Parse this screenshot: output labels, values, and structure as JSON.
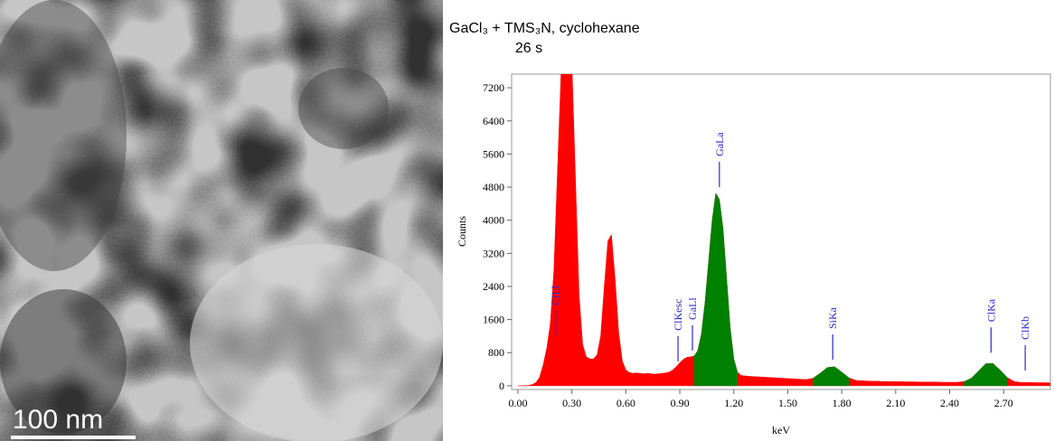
{
  "image": {
    "scale_bar": "100 nm"
  },
  "chart_data": {
    "type": "area",
    "title": "GaCl₃ + TMS₃N, cyclohexane",
    "subtitle": "26 s",
    "x_label": "keV",
    "y_label": "Counts",
    "color": "#ff0000",
    "highlight_color": "#008000",
    "highlights": [
      [
        0.98,
        1.22
      ],
      [
        1.64,
        1.84
      ],
      [
        2.48,
        2.72
      ]
    ],
    "xlim": [
      -0.035,
      2.96
    ],
    "ylim": [
      -90,
      7530
    ],
    "xticks": [
      {
        "value": 0,
        "label": "0.00"
      },
      {
        "value": 0.3,
        "label": "0.30"
      },
      {
        "value": 0.6,
        "label": "0.60"
      },
      {
        "value": 0.9,
        "label": "0.90"
      },
      {
        "value": 1.2,
        "label": "1.20"
      },
      {
        "value": 1.5,
        "label": "1.50"
      },
      {
        "value": 1.8,
        "label": "1.80"
      },
      {
        "value": 2.1,
        "label": "2.10"
      },
      {
        "value": 2.4,
        "label": "2.40"
      },
      {
        "value": 2.7,
        "label": "2.70"
      }
    ],
    "yticks": [
      0,
      800,
      1600,
      2400,
      3200,
      4000,
      4800,
      5600,
      6400,
      7200
    ],
    "x": [
      0.0,
      0.02,
      0.04,
      0.06,
      0.08,
      0.1,
      0.12,
      0.14,
      0.16,
      0.18,
      0.2,
      0.22,
      0.24,
      0.26,
      0.28,
      0.3,
      0.32,
      0.34,
      0.36,
      0.38,
      0.4,
      0.42,
      0.44,
      0.46,
      0.48,
      0.5,
      0.52,
      0.54,
      0.56,
      0.58,
      0.6,
      0.62,
      0.64,
      0.66,
      0.68,
      0.7,
      0.72,
      0.74,
      0.76,
      0.78,
      0.8,
      0.82,
      0.84,
      0.86,
      0.88,
      0.9,
      0.92,
      0.94,
      0.96,
      0.98,
      1.0,
      1.02,
      1.04,
      1.06,
      1.08,
      1.1,
      1.12,
      1.14,
      1.16,
      1.18,
      1.2,
      1.22,
      1.24,
      1.28,
      1.32,
      1.36,
      1.4,
      1.44,
      1.48,
      1.52,
      1.56,
      1.6,
      1.64,
      1.68,
      1.72,
      1.76,
      1.8,
      1.84,
      1.88,
      1.92,
      1.96,
      2.0,
      2.04,
      2.08,
      2.12,
      2.16,
      2.2,
      2.24,
      2.28,
      2.32,
      2.36,
      2.4,
      2.44,
      2.48,
      2.52,
      2.56,
      2.6,
      2.64,
      2.68,
      2.72,
      2.76,
      2.8,
      2.84,
      2.88,
      2.92,
      2.96
    ],
    "values": [
      0,
      0,
      0,
      10,
      30,
      80,
      200,
      500,
      900,
      1500,
      2800,
      5200,
      7600,
      8200,
      8200,
      7800,
      5000,
      2200,
      1000,
      700,
      650,
      650,
      750,
      1200,
      2400,
      3500,
      3650,
      2600,
      1300,
      600,
      380,
      320,
      300,
      310,
      300,
      290,
      300,
      290,
      280,
      290,
      300,
      310,
      330,
      380,
      460,
      560,
      640,
      690,
      700,
      720,
      850,
      1250,
      2000,
      3000,
      4000,
      4650,
      4500,
      3800,
      2600,
      1400,
      650,
      330,
      250,
      230,
      220,
      210,
      200,
      190,
      180,
      170,
      160,
      150,
      180,
      300,
      440,
      460,
      330,
      190,
      130,
      120,
      110,
      110,
      100,
      100,
      100,
      95,
      95,
      90,
      90,
      90,
      85,
      85,
      85,
      100,
      180,
      350,
      530,
      540,
      380,
      200,
      100,
      80,
      80,
      75,
      75,
      70
    ],
    "peak_labels": [
      {
        "label": "ClLl",
        "x": 0.21,
        "y": 1200
      },
      {
        "label": "ClKesc",
        "x": 0.89,
        "y": 590
      },
      {
        "label": "GaLl",
        "x": 0.97,
        "y": 850
      },
      {
        "label": "GaLa",
        "x": 1.12,
        "y": 4800
      },
      {
        "label": "SiKa",
        "x": 1.75,
        "y": 630
      },
      {
        "label": "ClKa",
        "x": 2.63,
        "y": 800
      },
      {
        "label": "ClKb",
        "x": 2.82,
        "y": 370
      }
    ],
    "peak_label_color": "#2a2ad0"
  }
}
